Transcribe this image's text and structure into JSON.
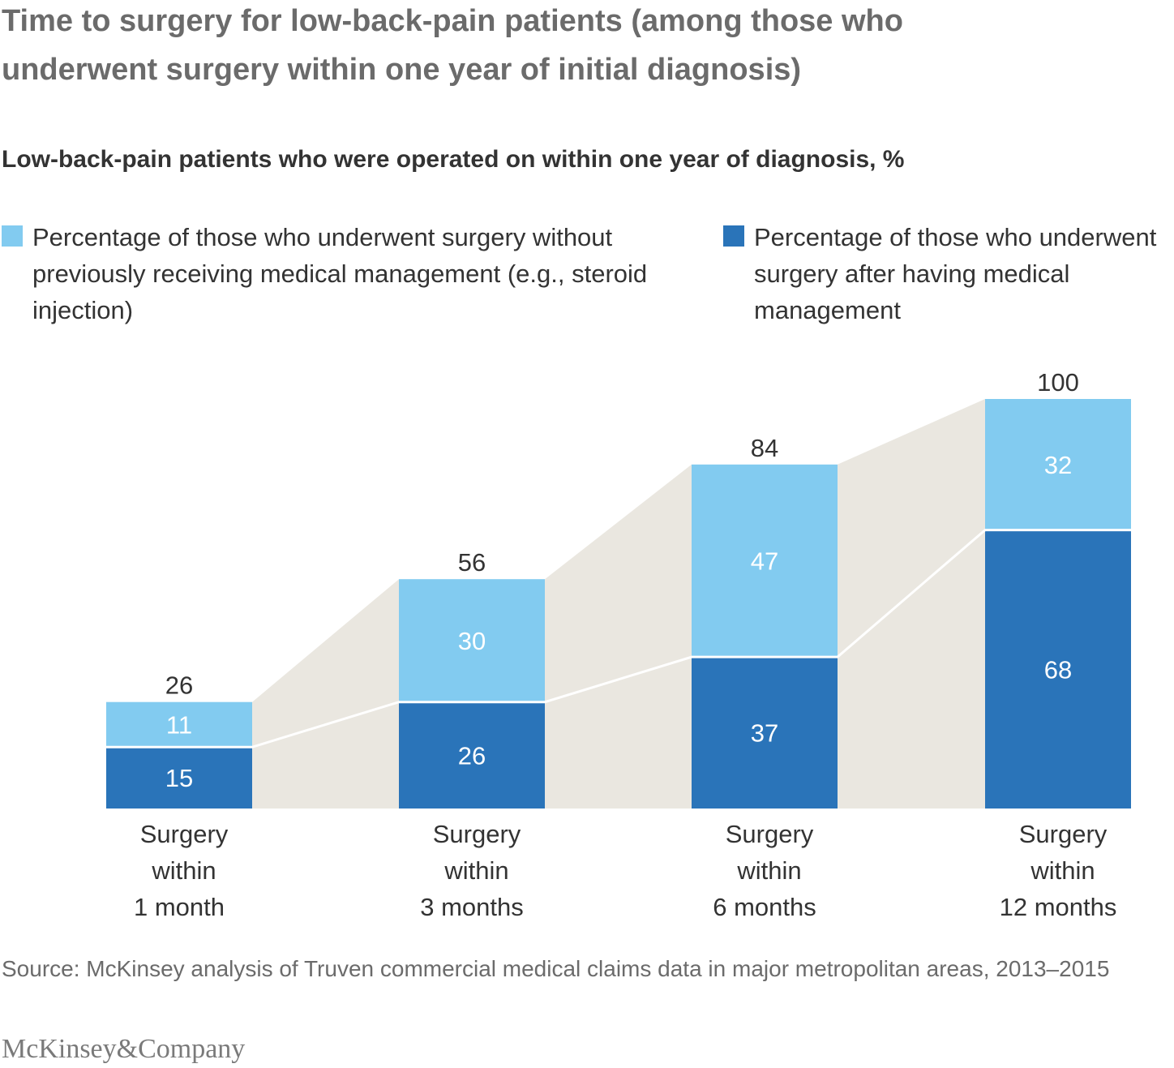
{
  "title": "Time to surgery for low-back-pain patients (among those who underwent surgery within one year of initial diagnosis)",
  "chart_data": {
    "type": "bar",
    "stacked": true,
    "title": "Low-back-pain patients who were operated on within one year of diagnosis, %",
    "categories": [
      "Surgery within 1 month",
      "Surgery within 3 months",
      "Surgery within 6 months",
      "Surgery within 12 months"
    ],
    "category_lines": [
      [
        "Surgery",
        "within",
        "1 month"
      ],
      [
        "Surgery",
        "within",
        "3 months"
      ],
      [
        "Surgery",
        "within",
        "6 months"
      ],
      [
        "Surgery",
        "within",
        "12 months"
      ]
    ],
    "series": [
      {
        "name": "Percentage of those who underwent surgery after having medical management",
        "color": "#2a74b9",
        "values": [
          15,
          26,
          37,
          68
        ]
      },
      {
        "name": "Percentage of those who underwent surgery without previously receiving medical management (e.g., steroid injection)",
        "color": "#82cbf0",
        "values": [
          11,
          30,
          47,
          32
        ]
      }
    ],
    "totals": [
      26,
      56,
      84,
      100
    ],
    "ylim": [
      0,
      100
    ],
    "legend_position": "top",
    "grid": false
  },
  "legend": {
    "light": "Percentage of those who underwent surgery without previously receiving medical management (e.g., steroid injection)",
    "dark": "Percentage of those who underwent surgery after having medical management"
  },
  "source": "Source: McKinsey analysis of Truven commercial medical claims data in major metropolitan areas, 2013–2015",
  "logo": "McKinsey&Company",
  "colors": {
    "connector": "#eae7e0"
  }
}
